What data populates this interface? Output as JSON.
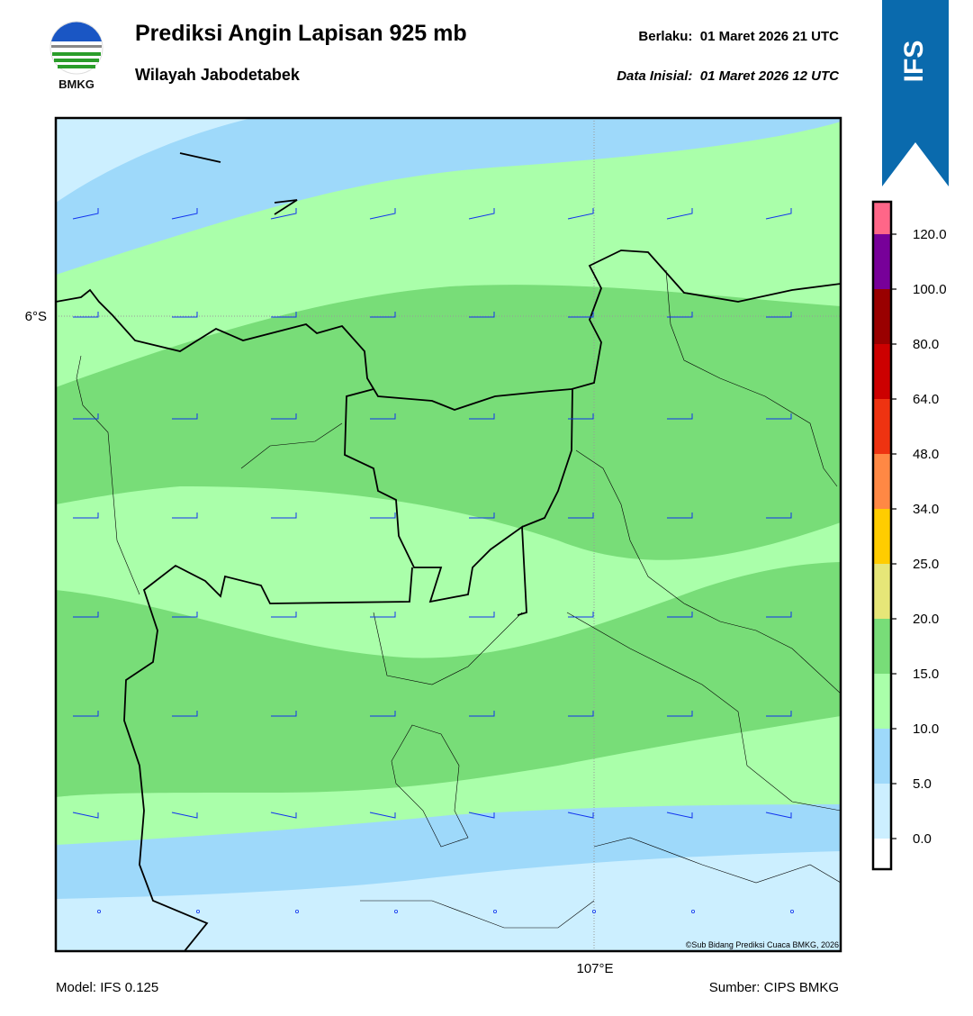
{
  "header": {
    "logo_text": "BMKG",
    "title": "Prediksi Angin Lapisan 925 mb",
    "subtitle": "Wilayah Jabodetabek",
    "valid": "Berlaku:  01 Maret 2026 21 UTC",
    "init": "Data Inisial:  01 Maret 2026 12 UTC",
    "badge": "IFS"
  },
  "map": {
    "lat_label": "6°S",
    "lon_label": "107°E",
    "credit": "©Sub Bidang Prediksi Cuaca BMKG, 2026"
  },
  "colorbar": {
    "ticks": [
      "0.0",
      "5.0",
      "10.0",
      "15.0",
      "20.0",
      "25.0",
      "34.0",
      "48.0",
      "64.0",
      "80.0",
      "100.0",
      "120.0"
    ],
    "colors": [
      "#ffffff",
      "#ccefff",
      "#9ed9fa",
      "#aaffaa",
      "#78dd78",
      "#e6e678",
      "#ffcc00",
      "#ff8844",
      "#ee3311",
      "#cc0000",
      "#990000",
      "#770099",
      "#ff6688"
    ]
  },
  "footer": {
    "model": "Model: IFS 0.125",
    "source": "Sumber: CIPS BMKG"
  }
}
